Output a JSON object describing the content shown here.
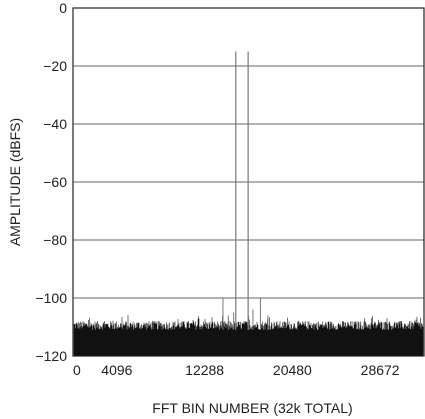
{
  "chart_data": {
    "type": "line",
    "title": "",
    "xlabel": "FFT BIN NUMBER (32k TOTAL)",
    "ylabel": "AMPLITUDE (dBFS)",
    "xlim": [
      0,
      32768
    ],
    "ylim": [
      -120,
      0
    ],
    "grid": true,
    "x_ticks": [
      {
        "value": 0,
        "label": "0"
      },
      {
        "value": 4096,
        "label": "4096"
      },
      {
        "value": 12288,
        "label": "12288"
      },
      {
        "value": 20480,
        "label": "20480"
      },
      {
        "value": 28672,
        "label": "28672"
      }
    ],
    "y_ticks": [
      {
        "value": 0,
        "label": "0"
      },
      {
        "value": -20,
        "label": "−20"
      },
      {
        "value": -40,
        "label": "−40"
      },
      {
        "value": -60,
        "label": "−60"
      },
      {
        "value": -80,
        "label": "−80"
      },
      {
        "value": -100,
        "label": "−100"
      },
      {
        "value": -120,
        "label": "−120"
      }
    ],
    "noise_floor_dbfs": -111,
    "signal_peaks": [
      {
        "x": 15200,
        "y": -15
      },
      {
        "x": 16350,
        "y": -15
      }
    ],
    "spurs": [
      {
        "x": 14000,
        "y": -100
      },
      {
        "x": 14500,
        "y": -106
      },
      {
        "x": 15000,
        "y": -105
      },
      {
        "x": 16800,
        "y": -104
      },
      {
        "x": 17500,
        "y": -100
      },
      {
        "x": 18200,
        "y": -106
      }
    ],
    "colors": {
      "grid": "#666666",
      "frame": "#222222",
      "trace": "#111111",
      "peak": "#777777"
    }
  }
}
